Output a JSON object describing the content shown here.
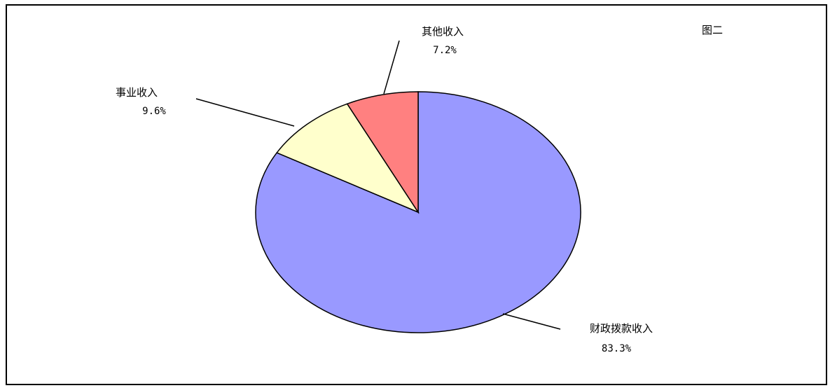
{
  "chart_title": "图二",
  "chart_data": {
    "type": "pie",
    "title": "图二",
    "start_angle_deg": 90,
    "direction": "clockwise",
    "legend": "none",
    "slices": [
      {
        "label": "财政拨款收入",
        "value": 83.3,
        "value_label": "83.3%",
        "color": "#9999ff"
      },
      {
        "label": "事业收入",
        "value": 9.6,
        "value_label": "9.6%",
        "color": "#ffffcc"
      },
      {
        "label": "其他收入",
        "value": 7.2,
        "value_label": "7.2%",
        "color": "#ff8080"
      }
    ]
  }
}
